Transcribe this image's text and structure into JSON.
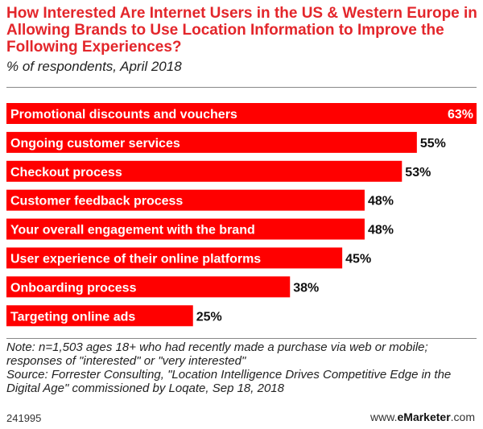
{
  "title": "How Interested Are Internet Users in the US & Western Europe in Allowing Brands to Use Location Information to Improve the Following Experiences?",
  "subtitle": "% of respondents, April 2018",
  "colors": {
    "bar": "#ff0000",
    "title": "#e3262b"
  },
  "chart_data": {
    "type": "bar",
    "orientation": "horizontal",
    "title": "How Interested Are Internet Users in the US & Western Europe in Allowing Brands to Use Location Information to Improve the Following Experiences?",
    "subtitle": "% of respondents, April 2018",
    "categories": [
      "Promotional discounts and vouchers",
      "Ongoing customer services",
      "Checkout process",
      "Customer feedback process",
      "Your overall engagement with the brand",
      "User experience of their online platforms",
      "Onboarding process",
      "Targeting online ads"
    ],
    "values": [
      63,
      55,
      53,
      48,
      48,
      45,
      38,
      25
    ],
    "value_labels": [
      "63%",
      "55%",
      "53%",
      "48%",
      "48%",
      "45%",
      "38%",
      "25%"
    ],
    "unit": "%",
    "xlim": [
      0,
      63
    ],
    "grid": false,
    "legend": "none"
  },
  "footnote": {
    "note": "Note: n=1,503 ages 18+ who had recently made a purchase via web or mobile; responses of \"interested\" or \"very interested\"",
    "source": "Source: Forrester Consulting, \"Location Intelligence Drives Competitive Edge in the Digital Age\" commissioned by Loqate, Sep 18, 2018"
  },
  "chart_id": "241995",
  "brand": {
    "prefix": "www.",
    "name": "eMarketer",
    "suffix": ".com"
  }
}
